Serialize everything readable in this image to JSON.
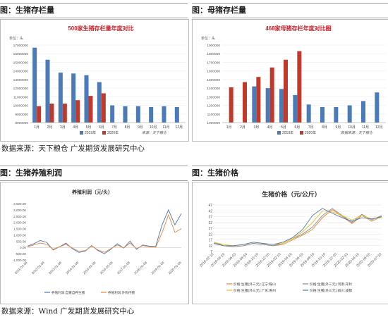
{
  "headers": {
    "h1": "图：生猪存栏量",
    "h2": "图：母猪存栏量",
    "h3": "图：生猪养殖利润",
    "h4": "图：生猪价格"
  },
  "sources": {
    "top": "数据来源：天下粮仓 广发期货发展研究中心",
    "bottom": "数据来源：Wind 广发期货发展研究中心"
  },
  "colors": {
    "blue": "#4a7ab8",
    "red": "#c0392b",
    "orange": "#e9863a",
    "grey": "#8a8a8a",
    "yellow": "#e8c020"
  },
  "chart_data": [
    {
      "id": "hog_inventory",
      "type": "bar",
      "title": "500家生猪存栏量年度对比",
      "ylabel": "单位：头",
      "note": "来源：天下粮仓",
      "categories": [
        "1月",
        "2月",
        "3月",
        "4月",
        "5月",
        "6月",
        "7月",
        "8月",
        "9月",
        "10月",
        "11月",
        "12月"
      ],
      "ylim": [
        8000000,
        17000000
      ],
      "yticks": [
        "17000000",
        "16000000",
        "15000000",
        "14000000",
        "13000000",
        "12000000",
        "11000000",
        "10000000",
        "9000000",
        "8000000"
      ],
      "series": [
        {
          "name": "2019年",
          "values": [
            16700000,
            15300000,
            13800000,
            13700000,
            13500000,
            12700000,
            10000000,
            9900000,
            9900000,
            9800000,
            9900000,
            9800000
          ]
        },
        {
          "name": "2020年",
          "values": [
            9900000,
            10200000,
            10200000,
            10600000,
            11100000,
            11400000,
            null,
            null,
            null,
            null,
            null,
            null
          ]
        }
      ]
    },
    {
      "id": "sow_inventory",
      "type": "bar",
      "title": "468家母猪存栏年度对比图",
      "ylabel": "单位：头",
      "note": "数据来源：天下粮仓",
      "categories": [
        "1月",
        "2月",
        "3月",
        "4月",
        "5月",
        "6月",
        "7月",
        "8月",
        "9月",
        "10月",
        "11月",
        "12月"
      ],
      "ylim": [
        1000000,
        1900000
      ],
      "yticks": [
        "1900000",
        "1800000",
        "1700000",
        "1600000",
        "1500000",
        "1400000",
        "1300000",
        "1200000",
        "1100000",
        "1000000"
      ],
      "series": [
        {
          "name": "2019年",
          "values": [
            null,
            null,
            1420000,
            1400000,
            1390000,
            1320000,
            1210000,
            1180000,
            1180000,
            1200000,
            1250000,
            1350000
          ]
        },
        {
          "name": "2020年",
          "values": [
            1410000,
            1470000,
            1530000,
            1640000,
            1730000,
            1830000,
            null,
            null,
            null,
            null,
            null,
            null
          ]
        }
      ]
    },
    {
      "id": "hog_profit",
      "type": "line",
      "title": "养殖利润（元/头）",
      "ylim": [
        -1000,
        3500
      ],
      "yticks": [
        "3,500.00",
        "3,000.00",
        "2,500.00",
        "2,000.00",
        "1,500.00",
        "1,000.00",
        "500.00",
        "0.00",
        "-500.00",
        "-1,000.00"
      ],
      "xticks": [
        "2011-01-08",
        "2012-01-08",
        "2013-01-08",
        "2014-01-08",
        "2015-01-08",
        "2016-01-08",
        "2017-01-08",
        "2018-01-08",
        "2019-01-08",
        "2020-01-08"
      ],
      "series": [
        {
          "name": "养殖利润:自繁自养生猪",
          "values": [
            100,
            300,
            550,
            400,
            -200,
            50,
            350,
            -100,
            -400,
            -300,
            150,
            -250,
            -500,
            -150,
            300,
            -50,
            500,
            -150,
            200,
            100,
            100,
            1800,
            3000,
            1800,
            2700
          ]
        },
        {
          "name": "养殖利润:外购仔猪",
          "values": [
            50,
            200,
            350,
            250,
            -150,
            50,
            250,
            -50,
            -300,
            -250,
            100,
            -200,
            -400,
            -100,
            200,
            -50,
            350,
            -100,
            150,
            50,
            0,
            1200,
            2600,
            1200,
            1500
          ]
        }
      ]
    },
    {
      "id": "hog_price",
      "type": "line",
      "title": "生猪价格（元/公斤）",
      "ylim": [
        7,
        47
      ],
      "yticks": [
        "47",
        "42",
        "37",
        "32",
        "27",
        "22",
        "17",
        "12",
        "7"
      ],
      "xticks": [
        "2018-02-10",
        "2018-04-10",
        "2018-06-10",
        "2018-08-10",
        "2018-10-10",
        "2018-12-10",
        "2019-02-10",
        "2019-04-10",
        "2019-06-10",
        "2019-08-10",
        "2019-10-10",
        "2019-12-10",
        "2020-02-10",
        "2020-04-10",
        "2020-06-10",
        "2020-07-10"
      ],
      "series": [
        {
          "name": "价格:生猪(外三元):辽宁:鞍山",
          "values": [
            14,
            12,
            11,
            12,
            14,
            13,
            12,
            13,
            17,
            21,
            26,
            36,
            43,
            37,
            31,
            38,
            33,
            37
          ]
        },
        {
          "name": "价格:生猪(外三元):河南:开封",
          "values": [
            15,
            12,
            11,
            12,
            14,
            13,
            12,
            14,
            18,
            22,
            28,
            38,
            44,
            38,
            32,
            39,
            34,
            38
          ]
        },
        {
          "name": "价格:生猪(外三元):广东:惠州",
          "values": [
            15,
            13,
            12,
            13,
            15,
            14,
            13,
            14,
            18,
            24,
            32,
            42,
            41,
            38,
            34,
            38,
            35,
            36
          ]
        },
        {
          "name": "价格:生猪(外三元):四川:成都",
          "values": [
            14,
            12,
            12,
            13,
            15,
            14,
            13,
            15,
            19,
            26,
            38,
            44,
            40,
            36,
            33,
            36,
            35,
            37
          ]
        }
      ]
    }
  ]
}
